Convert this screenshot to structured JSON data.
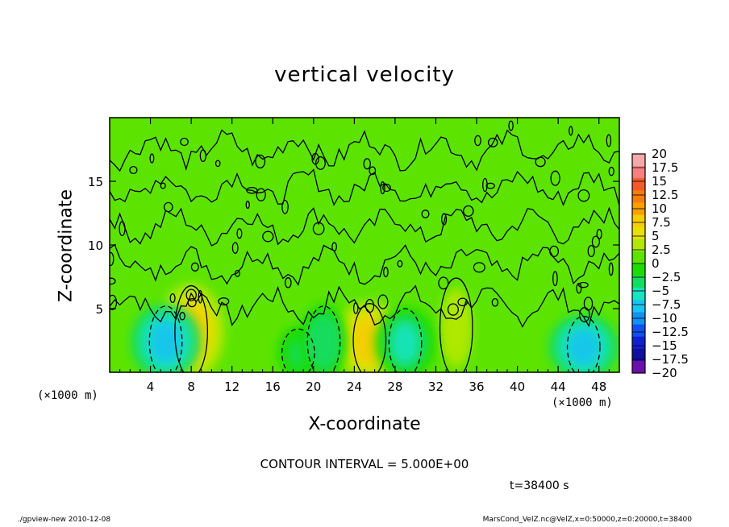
{
  "chart_data": {
    "type": "heatmap",
    "title": "vertical velocity",
    "xlabel": "X-coordinate",
    "ylabel": "Z-coordinate",
    "x_unit": "(×1000 m)",
    "xlim": [
      0,
      50
    ],
    "ylim": [
      0,
      20
    ],
    "x_ticks": [
      4,
      8,
      12,
      16,
      20,
      24,
      28,
      32,
      36,
      40,
      44,
      48
    ],
    "y_ticks": [
      5,
      10,
      15
    ],
    "contour_interval_text": "CONTOUR INTERVAL = 5.000E+00",
    "time_text": "t=38400 s",
    "colorbar": {
      "min": -20,
      "max": 20,
      "labels": [
        "20",
        "17.5",
        "15",
        "12.5",
        "10",
        "7.5",
        "5",
        "2.5",
        "0",
        "−2.5",
        "−5",
        "−7.5",
        "−10",
        "−12.5",
        "−15",
        "−17.5",
        "−20"
      ],
      "colors": [
        "#f7a8a8",
        "#f48080",
        "#f25a2e",
        "#f47d10",
        "#f7a000",
        "#f5cd00",
        "#e8e000",
        "#b0e800",
        "#5ce400",
        "#1edc00",
        "#14dc60",
        "#18e4c0",
        "#18c4f0",
        "#1490f0",
        "#1050f0",
        "#1020d0",
        "#10109c",
        "#6a10a8"
      ]
    },
    "features": [
      {
        "kind": "updraft",
        "x": 8,
        "z": 3.2,
        "peak": 7
      },
      {
        "kind": "updraft",
        "x": 25.5,
        "z": 2.5,
        "peak": 8
      },
      {
        "kind": "updraft",
        "x": 34,
        "z": 3.5,
        "peak": 3.5
      },
      {
        "kind": "downdraft",
        "x": 5.5,
        "z": 2.4,
        "peak": -7.5
      },
      {
        "kind": "downdraft",
        "x": 29,
        "z": 2.3,
        "peak": -6
      },
      {
        "kind": "downdraft",
        "x": 46.5,
        "z": 2.0,
        "peak": -7.5
      },
      {
        "kind": "downdraft",
        "x": 18.5,
        "z": 1.5,
        "peak": -3
      },
      {
        "kind": "downdraft",
        "x": 21,
        "z": 2.4,
        "peak": -4
      }
    ]
  },
  "footer": {
    "left": "./gpview-new   2010-12-08",
    "right": "MarsCond_VelZ.nc@VelZ,x=0:50000,z=0:20000,t=38400"
  }
}
